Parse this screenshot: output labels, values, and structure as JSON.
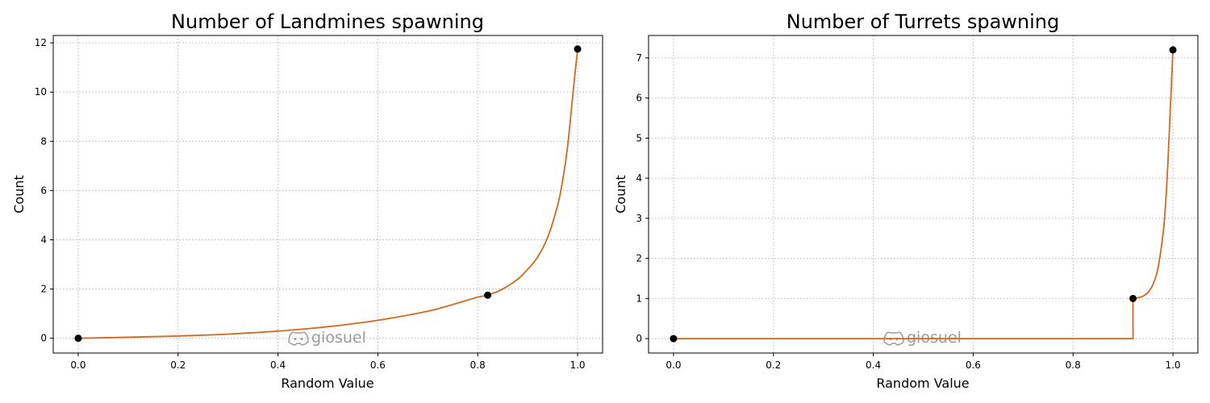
{
  "chart_data": [
    {
      "type": "line",
      "title": "Number of Landmines spawning",
      "xlabel": "Random Value",
      "ylabel": "Count",
      "xlim": [
        -0.05,
        1.05
      ],
      "ylim": [
        -0.6,
        12.3
      ],
      "xticks": [
        0.0,
        0.2,
        0.4,
        0.6,
        0.8,
        1.0
      ],
      "xtick_labels": [
        "0.0",
        "0.2",
        "0.4",
        "0.6",
        "0.8",
        "1.0"
      ],
      "yticks": [
        0,
        2,
        4,
        6,
        8,
        10,
        12
      ],
      "ytick_labels": [
        "0",
        "2",
        "4",
        "6",
        "8",
        "10",
        "12"
      ],
      "grid": true,
      "line_color": "#d2691e",
      "point_color": "#000000",
      "series": [
        {
          "x": [
            0.0,
            0.1,
            0.2,
            0.3,
            0.4,
            0.5,
            0.6,
            0.7,
            0.75,
            0.8,
            0.82,
            0.85,
            0.88,
            0.9,
            0.92,
            0.94,
            0.96,
            0.97,
            0.98,
            0.99,
            0.995,
            1.0
          ],
          "y": [
            0.0,
            0.04,
            0.09,
            0.17,
            0.29,
            0.47,
            0.73,
            1.1,
            1.37,
            1.67,
            1.75,
            2.0,
            2.4,
            2.8,
            3.3,
            4.1,
            5.4,
            6.4,
            7.8,
            9.8,
            10.8,
            11.75
          ]
        }
      ],
      "points": [
        {
          "x": 0.0,
          "y": 0.0
        },
        {
          "x": 0.82,
          "y": 1.75
        },
        {
          "x": 1.0,
          "y": 11.75
        }
      ],
      "watermark": "giosuel"
    },
    {
      "type": "line",
      "title": "Number of Turrets spawning",
      "xlabel": "Random Value",
      "ylabel": "Count",
      "xlim": [
        -0.05,
        1.05
      ],
      "ylim": [
        -0.36,
        7.56
      ],
      "xticks": [
        0.0,
        0.2,
        0.4,
        0.6,
        0.8,
        1.0
      ],
      "xtick_labels": [
        "0.0",
        "0.2",
        "0.4",
        "0.6",
        "0.8",
        "1.0"
      ],
      "yticks": [
        0,
        1,
        2,
        3,
        4,
        5,
        6,
        7
      ],
      "ytick_labels": [
        "0",
        "1",
        "2",
        "3",
        "4",
        "5",
        "6",
        "7"
      ],
      "grid": true,
      "line_color": "#d2691e",
      "point_color": "#000000",
      "series": [
        {
          "x": [
            0.0,
            0.92,
            0.92,
            0.93,
            0.94,
            0.95,
            0.96,
            0.97,
            0.98,
            0.985,
            0.99,
            0.995,
            1.0
          ],
          "y": [
            0.0,
            0.0,
            1.0,
            1.02,
            1.06,
            1.15,
            1.35,
            1.75,
            2.6,
            3.3,
            4.4,
            5.8,
            7.2
          ]
        }
      ],
      "points": [
        {
          "x": 0.0,
          "y": 0.0
        },
        {
          "x": 0.92,
          "y": 1.0
        },
        {
          "x": 1.0,
          "y": 7.2
        }
      ],
      "watermark": "giosuel"
    }
  ]
}
